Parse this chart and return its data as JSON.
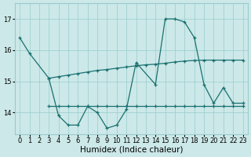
{
  "bg_color": "#cce8e8",
  "grid_color": "#99cccc",
  "line_color": "#1a7070",
  "xlim": [
    -0.5,
    23.5
  ],
  "ylim": [
    13.3,
    17.5
  ],
  "yticks": [
    14,
    15,
    16,
    17
  ],
  "xticks": [
    0,
    1,
    2,
    3,
    4,
    5,
    6,
    7,
    8,
    9,
    10,
    11,
    12,
    13,
    14,
    15,
    16,
    17,
    18,
    19,
    20,
    21,
    22,
    23
  ],
  "xlabel": "Humidex (Indice chaleur)",
  "xlabel_fontsize": 7.5,
  "tick_fontsize": 6.0,
  "series_A_x": [
    0,
    1,
    3,
    4,
    5,
    6,
    7,
    8,
    9,
    10,
    11,
    12,
    14,
    15,
    16,
    17,
    18,
    19,
    20,
    21,
    22,
    23
  ],
  "series_A_y": [
    16.4,
    15.9,
    15.1,
    13.9,
    13.6,
    13.6,
    14.2,
    14.0,
    13.5,
    13.6,
    14.1,
    15.6,
    14.9,
    17.0,
    17.0,
    16.9,
    16.4,
    14.9,
    14.3,
    14.8,
    14.3,
    14.3
  ],
  "series_B_x": [
    3,
    4,
    5,
    6,
    7,
    8,
    9,
    10,
    11,
    12,
    13,
    14,
    15,
    16,
    17,
    18,
    19,
    20,
    21,
    22,
    23
  ],
  "series_B_y": [
    14.2,
    14.2,
    14.2,
    14.2,
    14.2,
    14.2,
    14.2,
    14.2,
    14.2,
    14.2,
    14.2,
    14.2,
    14.2,
    14.2,
    14.2,
    14.2,
    14.2,
    14.2,
    14.2,
    14.2,
    14.2
  ],
  "series_C_x": [
    3,
    4,
    5,
    6,
    7,
    8,
    9,
    10,
    11,
    12,
    13,
    14,
    15,
    16,
    17,
    18,
    19,
    20,
    21,
    22,
    23
  ],
  "series_C_y": [
    15.1,
    15.15,
    15.2,
    15.25,
    15.3,
    15.35,
    15.38,
    15.42,
    15.46,
    15.5,
    15.53,
    15.55,
    15.58,
    15.62,
    15.65,
    15.67,
    15.68,
    15.68,
    15.68,
    15.68,
    15.68
  ]
}
